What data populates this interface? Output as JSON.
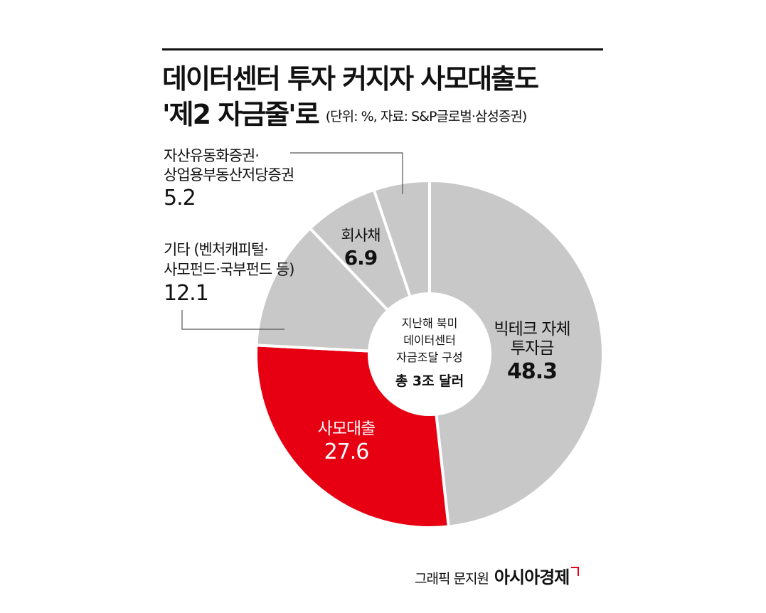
{
  "title": {
    "line1": "데이터센터 투자 커지자 사모대출도",
    "line2": "'제2 자금줄'로",
    "unit_note": "(단위: %, 자료: S&P글로벌·삼성증권)"
  },
  "center_label": {
    "line1": "지난해 북미",
    "line2": "데이터센터",
    "line3": "자금조달 구성",
    "total": "총 3조 달러"
  },
  "colors": {
    "gray": "#c8c8c8",
    "red": "#e60012",
    "separator": "#ffffff",
    "leader": "#555555"
  },
  "chart_data": {
    "type": "pie",
    "donut": true,
    "unit": "%",
    "slices": [
      {
        "label_lines": [
          "빅테크 자체",
          "투자금"
        ],
        "value": 48.3,
        "value_label": "48.3",
        "color": "#c8c8c8"
      },
      {
        "label_lines": [
          "사모대출"
        ],
        "value": 27.6,
        "value_label": "27.6",
        "color": "#e60012"
      },
      {
        "label_lines": [
          "기타 (벤처캐피털·",
          "사모펀드·국부펀드 등)"
        ],
        "value": 12.1,
        "value_label": "12.1",
        "color": "#c8c8c8"
      },
      {
        "label_lines": [
          "회사채"
        ],
        "value": 6.9,
        "value_label": "6.9",
        "color": "#c8c8c8"
      },
      {
        "label_lines": [
          "자산유동화증권·",
          "상업용부동산저당증권"
        ],
        "value": 5.2,
        "value_label": "5.2",
        "color": "#c8c8c8"
      }
    ]
  },
  "credit": {
    "text": "그래픽 문지원",
    "brand": "아시아경제"
  }
}
